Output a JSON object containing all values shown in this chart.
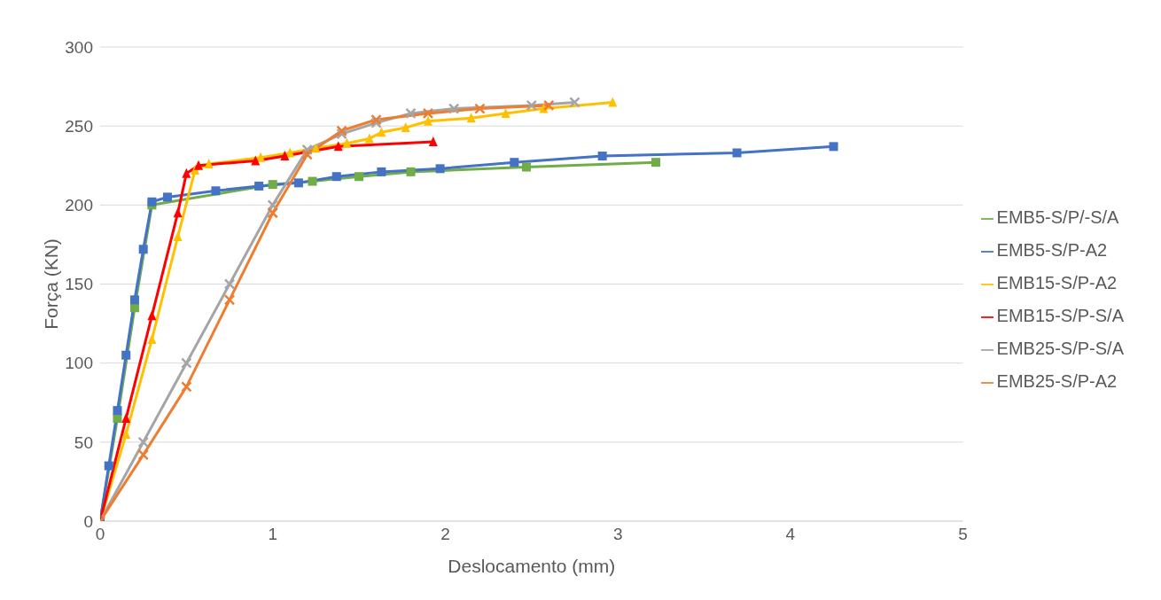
{
  "chart_data": {
    "type": "line",
    "xlabel": "Deslocamento (mm)",
    "ylabel": "Força (KN)",
    "xlim": [
      0,
      5
    ],
    "xticks": [
      0,
      1,
      2,
      3,
      4,
      5
    ],
    "ylim": [
      0,
      300
    ],
    "yticks": [
      0,
      50,
      100,
      150,
      200,
      250,
      300
    ],
    "grid": "y",
    "legend": "right",
    "line_style": "solid",
    "series": [
      {
        "name": "EMB5-S/P/-S/A",
        "color": "#70ad47",
        "marker": "square",
        "x": [
          0,
          0.1,
          0.2,
          0.3,
          1.0,
          1.23,
          1.5,
          1.8,
          2.47,
          3.22
        ],
        "values": [
          0,
          65,
          135,
          200,
          213,
          215,
          218,
          221,
          224,
          227
        ]
      },
      {
        "name": "EMB5-S/P-A2",
        "color": "#4472c4",
        "marker": "square",
        "x": [
          0,
          0.05,
          0.1,
          0.15,
          0.2,
          0.25,
          0.3,
          0.39,
          0.67,
          0.92,
          1.15,
          1.37,
          1.63,
          1.97,
          2.4,
          2.91,
          3.69,
          4.25
        ],
        "values": [
          0,
          35,
          70,
          105,
          140,
          172,
          202,
          205,
          209,
          212,
          214,
          218,
          221,
          223,
          227,
          231,
          233,
          237
        ]
      },
      {
        "name": "EMB15-S/P-A2",
        "color": "#ffc000",
        "marker": "triangle",
        "x": [
          0,
          0.15,
          0.3,
          0.45,
          0.55,
          0.63,
          0.93,
          1.1,
          1.25,
          1.43,
          1.56,
          1.63,
          1.77,
          1.9,
          2.15,
          2.35,
          2.57,
          2.97
        ],
        "values": [
          0,
          55,
          115,
          180,
          222,
          226,
          230,
          233,
          236,
          239,
          242,
          246,
          249,
          253,
          255,
          258,
          261,
          265
        ]
      },
      {
        "name": "EMB15-S/P-S/A",
        "color": "#ff0000",
        "marker": "triangle",
        "x": [
          0,
          0.15,
          0.3,
          0.45,
          0.5,
          0.57,
          0.9,
          1.07,
          1.38,
          1.93
        ],
        "values": [
          0,
          65,
          130,
          195,
          220,
          225,
          228,
          231,
          237,
          240
        ]
      },
      {
        "name": "EMB25-S/P-S/A",
        "color": "#a5a5a5",
        "marker": "cross",
        "x": [
          0,
          0.25,
          0.5,
          0.75,
          1.0,
          1.2,
          1.4,
          1.6,
          1.8,
          2.05,
          2.5,
          2.75
        ],
        "values": [
          0,
          50,
          100,
          150,
          200,
          235,
          245,
          252,
          258,
          261,
          263,
          265
        ]
      },
      {
        "name": "EMB25-S/P-A2",
        "color": "#ed7d31",
        "marker": "cross",
        "x": [
          0,
          0.25,
          0.5,
          0.75,
          1.0,
          1.2,
          1.4,
          1.6,
          1.9,
          2.2,
          2.6
        ],
        "values": [
          0,
          42,
          85,
          140,
          195,
          232,
          247,
          254,
          258,
          261,
          263
        ]
      }
    ]
  }
}
